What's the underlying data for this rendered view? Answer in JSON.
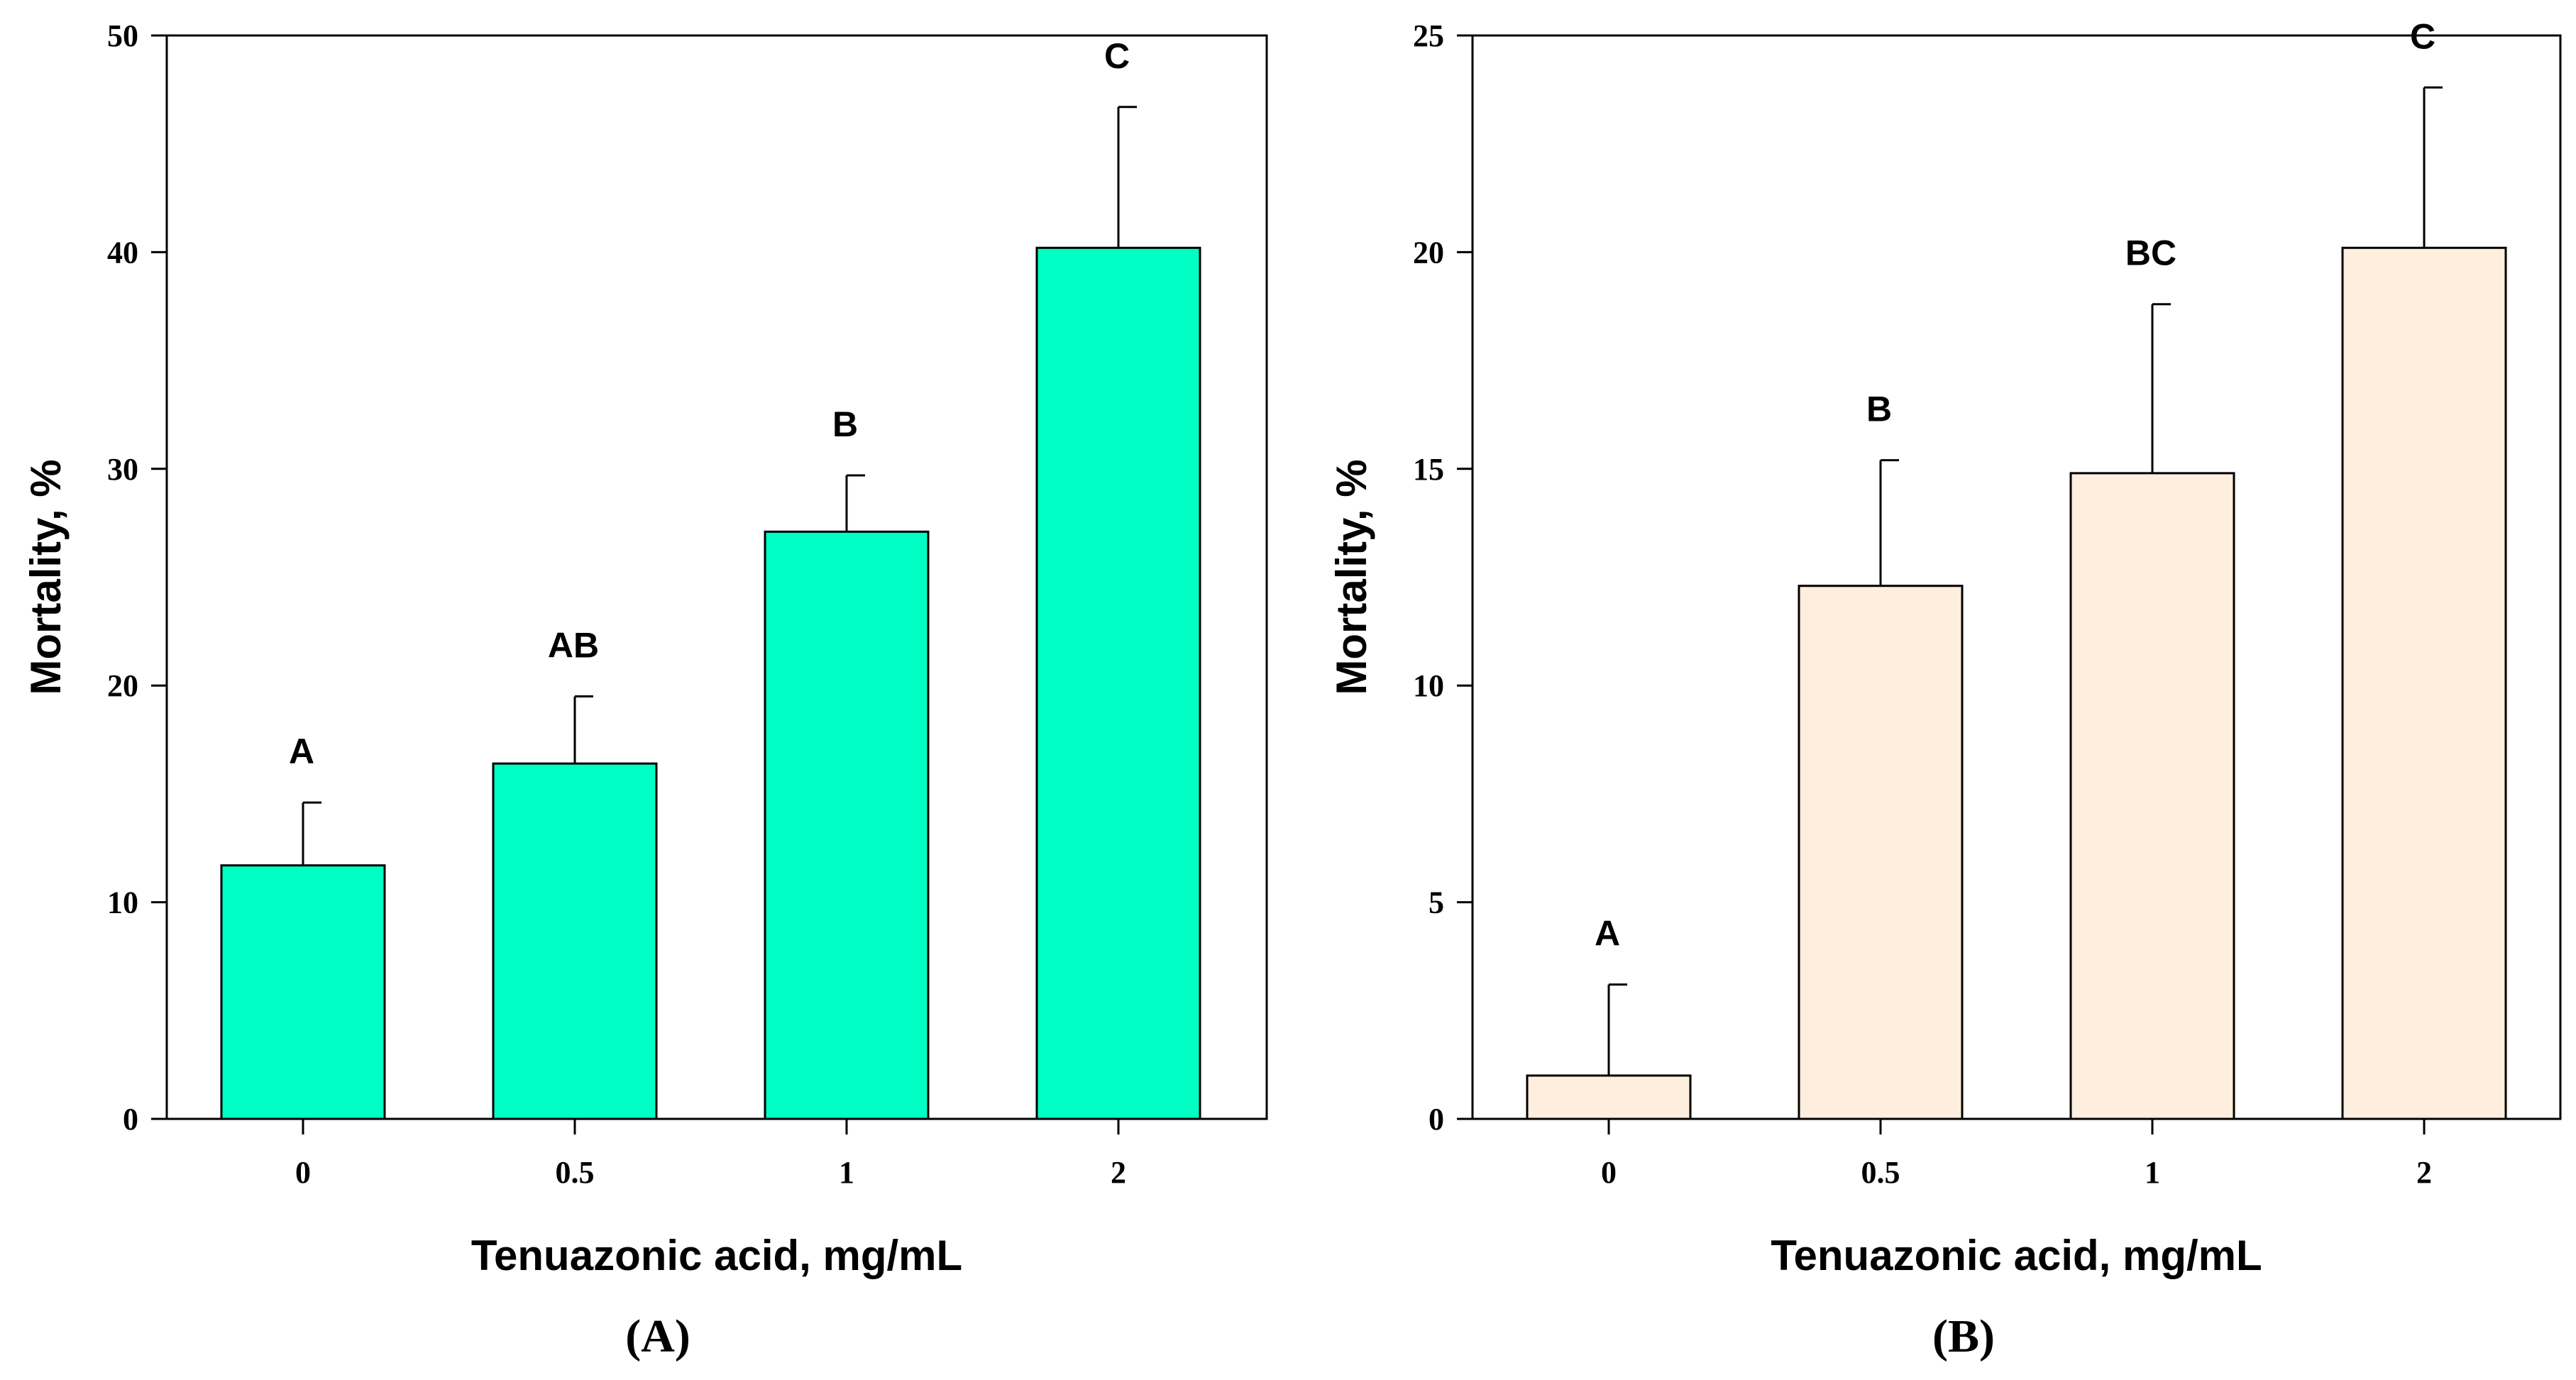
{
  "chart_data": [
    {
      "type": "bar",
      "panel_label": "(A)",
      "categories": [
        "0",
        "0.5",
        "1",
        "2"
      ],
      "values": [
        11.7,
        16.4,
        27.1,
        40.2
      ],
      "errors": [
        2.9,
        3.1,
        2.6,
        6.5
      ],
      "significance": [
        "A",
        "AB",
        "B",
        "C"
      ],
      "xlabel": "Tenuazonic acid, mg/mL",
      "ylabel": "Mortality, %",
      "ylim": [
        0,
        50
      ],
      "yticks": [
        0,
        10,
        20,
        30,
        40,
        50
      ],
      "bar_color": "#00ffc4",
      "grid": false
    },
    {
      "type": "bar",
      "panel_label": "(B)",
      "categories": [
        "0",
        "0.5",
        "1",
        "2"
      ],
      "values": [
        1.0,
        12.3,
        14.9,
        20.1
      ],
      "errors": [
        2.1,
        2.9,
        3.9,
        3.7
      ],
      "significance": [
        "A",
        "B",
        "BC",
        "C"
      ],
      "xlabel": "Tenuazonic acid, mg/mL",
      "ylabel": "Mortality, %",
      "ylim": [
        0,
        25
      ],
      "yticks": [
        0,
        5,
        10,
        15,
        20,
        25
      ],
      "bar_color": "#fdeedd",
      "grid": false
    }
  ]
}
